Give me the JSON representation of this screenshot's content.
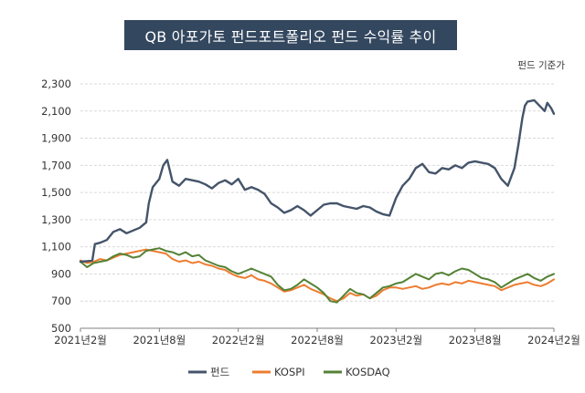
{
  "chart_data": {
    "type": "line",
    "title": "QB 아포가토 펀드포트폴리오 펀드 수익률 추이",
    "unit_note": "펀드 기준가",
    "xlabel": "",
    "ylabel": "",
    "xlim": [
      0,
      36
    ],
    "ylim": [
      500,
      2300
    ],
    "y_ticks": [
      500,
      700,
      900,
      1100,
      1300,
      1500,
      1700,
      1900,
      2100,
      2300
    ],
    "y_tick_labels": [
      "500",
      "700",
      "900",
      "1,100",
      "1,300",
      "1,500",
      "1,700",
      "1,900",
      "2,100",
      "2,300"
    ],
    "x_ticks": [
      0,
      6,
      12,
      18,
      24,
      30,
      36
    ],
    "x_tick_labels": [
      "2021년2월",
      "2021년8월",
      "2022년2월",
      "2022년8월",
      "2023년2월",
      "2023년8월",
      "2024년2월"
    ],
    "grid": true,
    "legend_position": "bottom",
    "series": [
      {
        "name": "펀드",
        "color": "#44546a",
        "x": [
          0,
          0.6,
          0.9,
          1.1,
          1.5,
          2,
          2.5,
          3,
          3.5,
          4,
          4.5,
          5,
          5.2,
          5.5,
          6,
          6.3,
          6.6,
          7,
          7.5,
          8,
          8.5,
          9,
          9.5,
          10,
          10.5,
          11,
          11.5,
          12,
          12.5,
          13,
          13.5,
          14,
          14.5,
          15,
          15.5,
          16,
          16.5,
          17,
          17.5,
          18,
          18.5,
          19,
          19.5,
          20,
          20.5,
          21,
          21.5,
          22,
          22.5,
          23,
          23.5,
          24,
          24.5,
          25,
          25.5,
          26,
          26.5,
          27,
          27.5,
          28,
          28.5,
          29,
          29.5,
          30,
          30.5,
          31,
          31.5,
          32,
          32.5,
          33,
          33.3,
          33.6,
          33.8,
          34,
          34.5,
          35,
          35.3,
          35.5,
          35.8,
          36
        ],
        "values": [
          990,
          995,
          1000,
          1120,
          1130,
          1150,
          1210,
          1230,
          1200,
          1220,
          1240,
          1280,
          1420,
          1540,
          1600,
          1700,
          1740,
          1580,
          1550,
          1600,
          1590,
          1580,
          1560,
          1530,
          1570,
          1590,
          1560,
          1600,
          1520,
          1540,
          1520,
          1490,
          1420,
          1390,
          1350,
          1370,
          1400,
          1370,
          1330,
          1370,
          1410,
          1420,
          1420,
          1400,
          1390,
          1380,
          1400,
          1390,
          1360,
          1340,
          1330,
          1460,
          1550,
          1600,
          1680,
          1710,
          1650,
          1640,
          1680,
          1670,
          1700,
          1680,
          1720,
          1730,
          1720,
          1710,
          1680,
          1600,
          1550,
          1680,
          1850,
          2050,
          2140,
          2170,
          2180,
          2130,
          2100,
          2160,
          2120,
          2080
        ]
      },
      {
        "name": "KOSPI",
        "color": "#ed7d31",
        "x": [
          0,
          0.5,
          1,
          1.5,
          2,
          2.5,
          3,
          3.5,
          4,
          4.5,
          5,
          5.5,
          6,
          6.5,
          7,
          7.5,
          8,
          8.5,
          9,
          9.5,
          10,
          10.5,
          11,
          11.5,
          12,
          12.5,
          13,
          13.5,
          14,
          14.5,
          15,
          15.5,
          16,
          16.5,
          17,
          17.5,
          18,
          18.5,
          19,
          19.5,
          20,
          20.5,
          21,
          21.5,
          22,
          22.5,
          23,
          23.5,
          24,
          24.5,
          25,
          25.5,
          26,
          26.5,
          27,
          27.5,
          28,
          28.5,
          29,
          29.5,
          30,
          30.5,
          31,
          31.5,
          32,
          32.5,
          33,
          33.5,
          34,
          34.5,
          35,
          35.5,
          36
        ],
        "values": [
          1000,
          980,
          990,
          1010,
          1000,
          1020,
          1040,
          1050,
          1060,
          1070,
          1080,
          1070,
          1060,
          1050,
          1010,
          990,
          1000,
          980,
          990,
          970,
          960,
          940,
          930,
          900,
          880,
          870,
          890,
          860,
          850,
          830,
          800,
          770,
          780,
          800,
          820,
          790,
          770,
          750,
          720,
          700,
          720,
          760,
          740,
          750,
          720,
          740,
          780,
          800,
          800,
          790,
          800,
          810,
          790,
          800,
          820,
          830,
          820,
          840,
          830,
          850,
          840,
          830,
          820,
          810,
          780,
          800,
          820,
          830,
          840,
          820,
          810,
          830,
          860
        ]
      },
      {
        "name": "KOSDAQ",
        "color": "#548235",
        "x": [
          0,
          0.5,
          1,
          1.5,
          2,
          2.5,
          3,
          3.5,
          4,
          4.5,
          5,
          5.5,
          6,
          6.5,
          7,
          7.5,
          8,
          8.5,
          9,
          9.5,
          10,
          10.5,
          11,
          11.5,
          12,
          12.5,
          13,
          13.5,
          14,
          14.5,
          15,
          15.5,
          16,
          16.5,
          17,
          17.5,
          18,
          18.5,
          19,
          19.5,
          20,
          20.5,
          21,
          21.5,
          22,
          22.5,
          23,
          23.5,
          24,
          24.5,
          25,
          25.5,
          26,
          26.5,
          27,
          27.5,
          28,
          28.5,
          29,
          29.5,
          30,
          30.5,
          31,
          31.5,
          32,
          32.5,
          33,
          33.5,
          34,
          34.5,
          35,
          35.5,
          36
        ],
        "values": [
          990,
          950,
          980,
          990,
          1000,
          1030,
          1050,
          1040,
          1020,
          1030,
          1070,
          1080,
          1090,
          1070,
          1060,
          1040,
          1060,
          1030,
          1040,
          1000,
          980,
          960,
          950,
          920,
          900,
          920,
          940,
          920,
          900,
          880,
          820,
          780,
          790,
          820,
          860,
          830,
          800,
          760,
          700,
          690,
          740,
          790,
          760,
          750,
          720,
          760,
          800,
          810,
          830,
          840,
          870,
          900,
          880,
          860,
          900,
          910,
          890,
          920,
          940,
          930,
          900,
          870,
          860,
          840,
          800,
          830,
          860,
          880,
          900,
          870,
          850,
          880,
          900
        ]
      }
    ]
  }
}
